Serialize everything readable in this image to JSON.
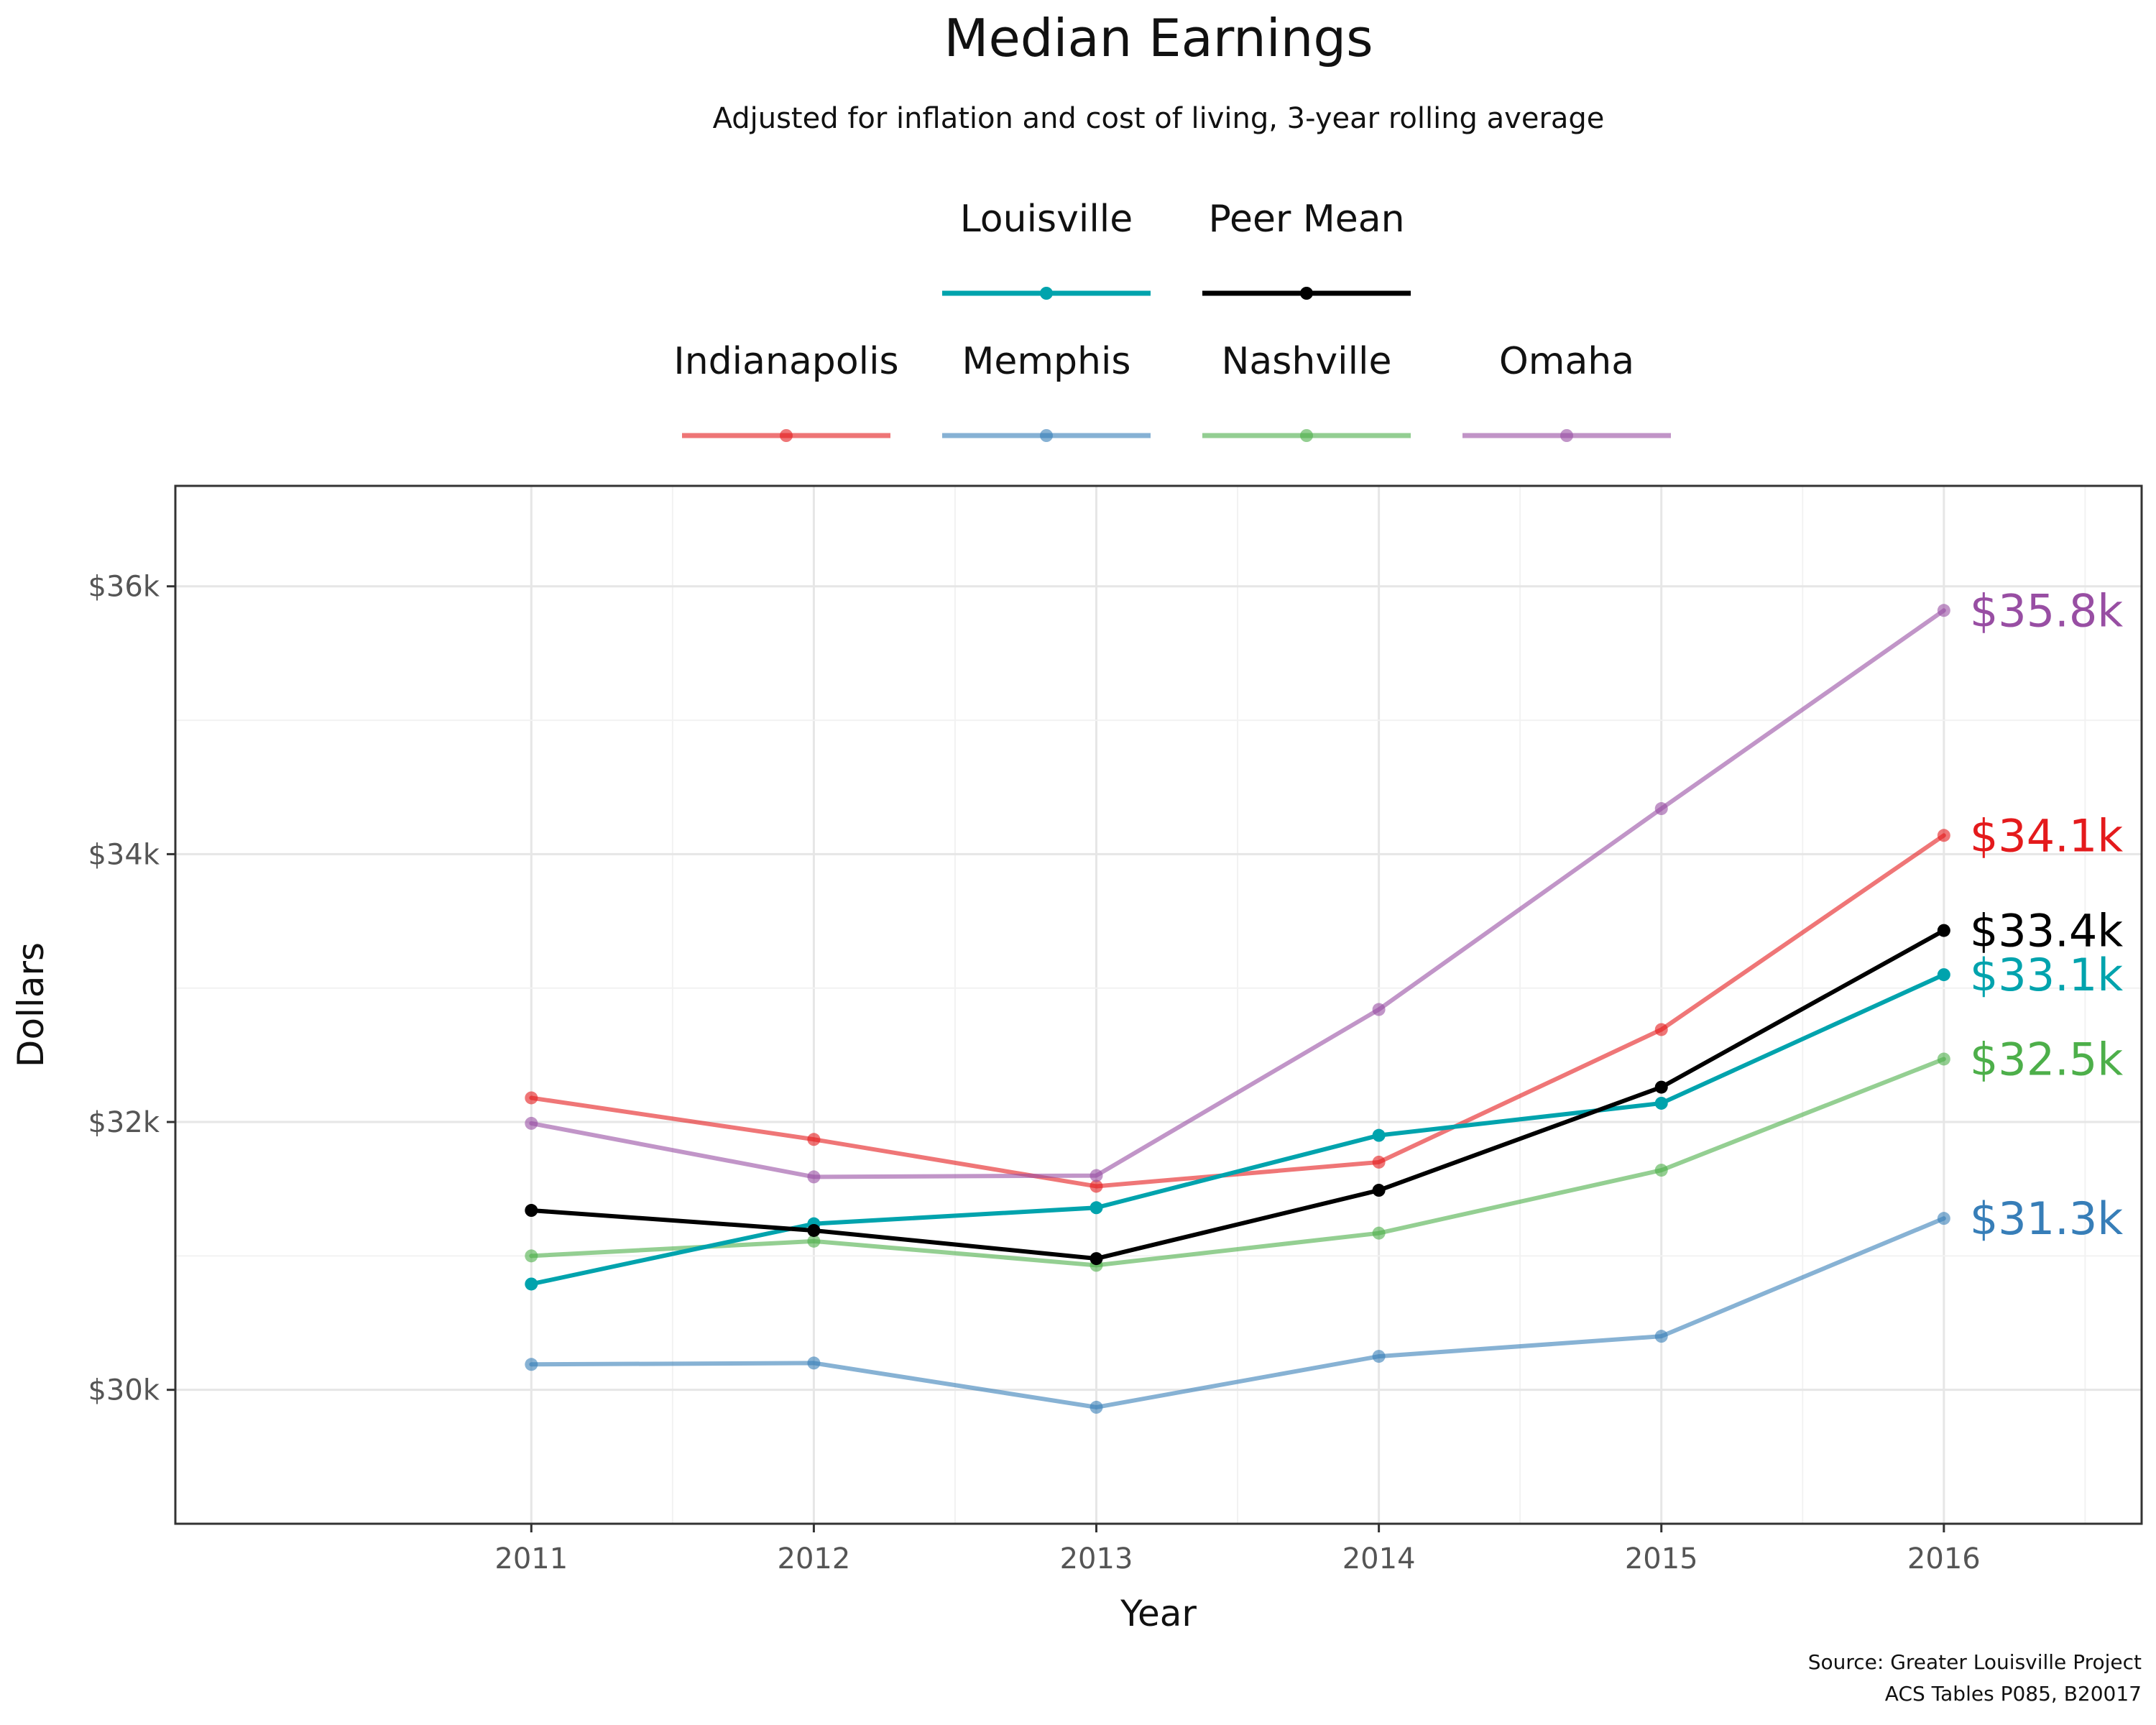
{
  "chart_data": {
    "type": "line",
    "title": "Median Earnings",
    "subtitle": "Adjusted for inflation and cost of living, 3-year rolling average",
    "xlabel": "Year",
    "ylabel": "Dollars",
    "x": [
      2011,
      2012,
      2013,
      2014,
      2015,
      2016
    ],
    "x_tick_labels": [
      "2011",
      "2012",
      "2013",
      "2014",
      "2015",
      "2016"
    ],
    "y_ticks": [
      30000,
      32000,
      34000,
      36000
    ],
    "y_tick_labels": [
      "$30k",
      "$32k",
      "$34k",
      "$36k"
    ],
    "xlim": [
      2009.74,
      2016.7
    ],
    "ylim": [
      29000,
      36750
    ],
    "grid": true,
    "legend_position": "top",
    "legend_rows": [
      [
        "Louisville",
        "Peer Mean"
      ],
      [
        "Indianapolis",
        "Memphis",
        "Nashville",
        "Omaha"
      ]
    ],
    "series": [
      {
        "name": "Indianapolis",
        "color": "#e41a1c",
        "values": [
          32180,
          31870,
          31520,
          31700,
          32690,
          34140
        ],
        "end_label": "$34.1k"
      },
      {
        "name": "Memphis",
        "color": "#377eb8",
        "values": [
          30190,
          30200,
          29870,
          30250,
          30400,
          31280
        ],
        "end_label": "$31.3k"
      },
      {
        "name": "Nashville",
        "color": "#4daf4a",
        "values": [
          31000,
          31110,
          30930,
          31170,
          31640,
          32470
        ],
        "end_label": "$32.5k"
      },
      {
        "name": "Omaha",
        "color": "#984ea3",
        "values": [
          31990,
          31590,
          31600,
          32840,
          34340,
          35820
        ],
        "end_label": "$35.8k"
      },
      {
        "name": "Louisville",
        "color": "#00a3ad",
        "values": [
          30790,
          31240,
          31360,
          31900,
          32140,
          33100
        ],
        "end_label": "$33.1k"
      },
      {
        "name": "Peer Mean",
        "color": "#000000",
        "values": [
          31340,
          31190,
          30980,
          31490,
          32260,
          33430
        ],
        "end_label": "$33.4k"
      }
    ],
    "source_lines": [
      "Source: Greater Louisville Project",
      "ACS Tables P085, B20017"
    ]
  }
}
